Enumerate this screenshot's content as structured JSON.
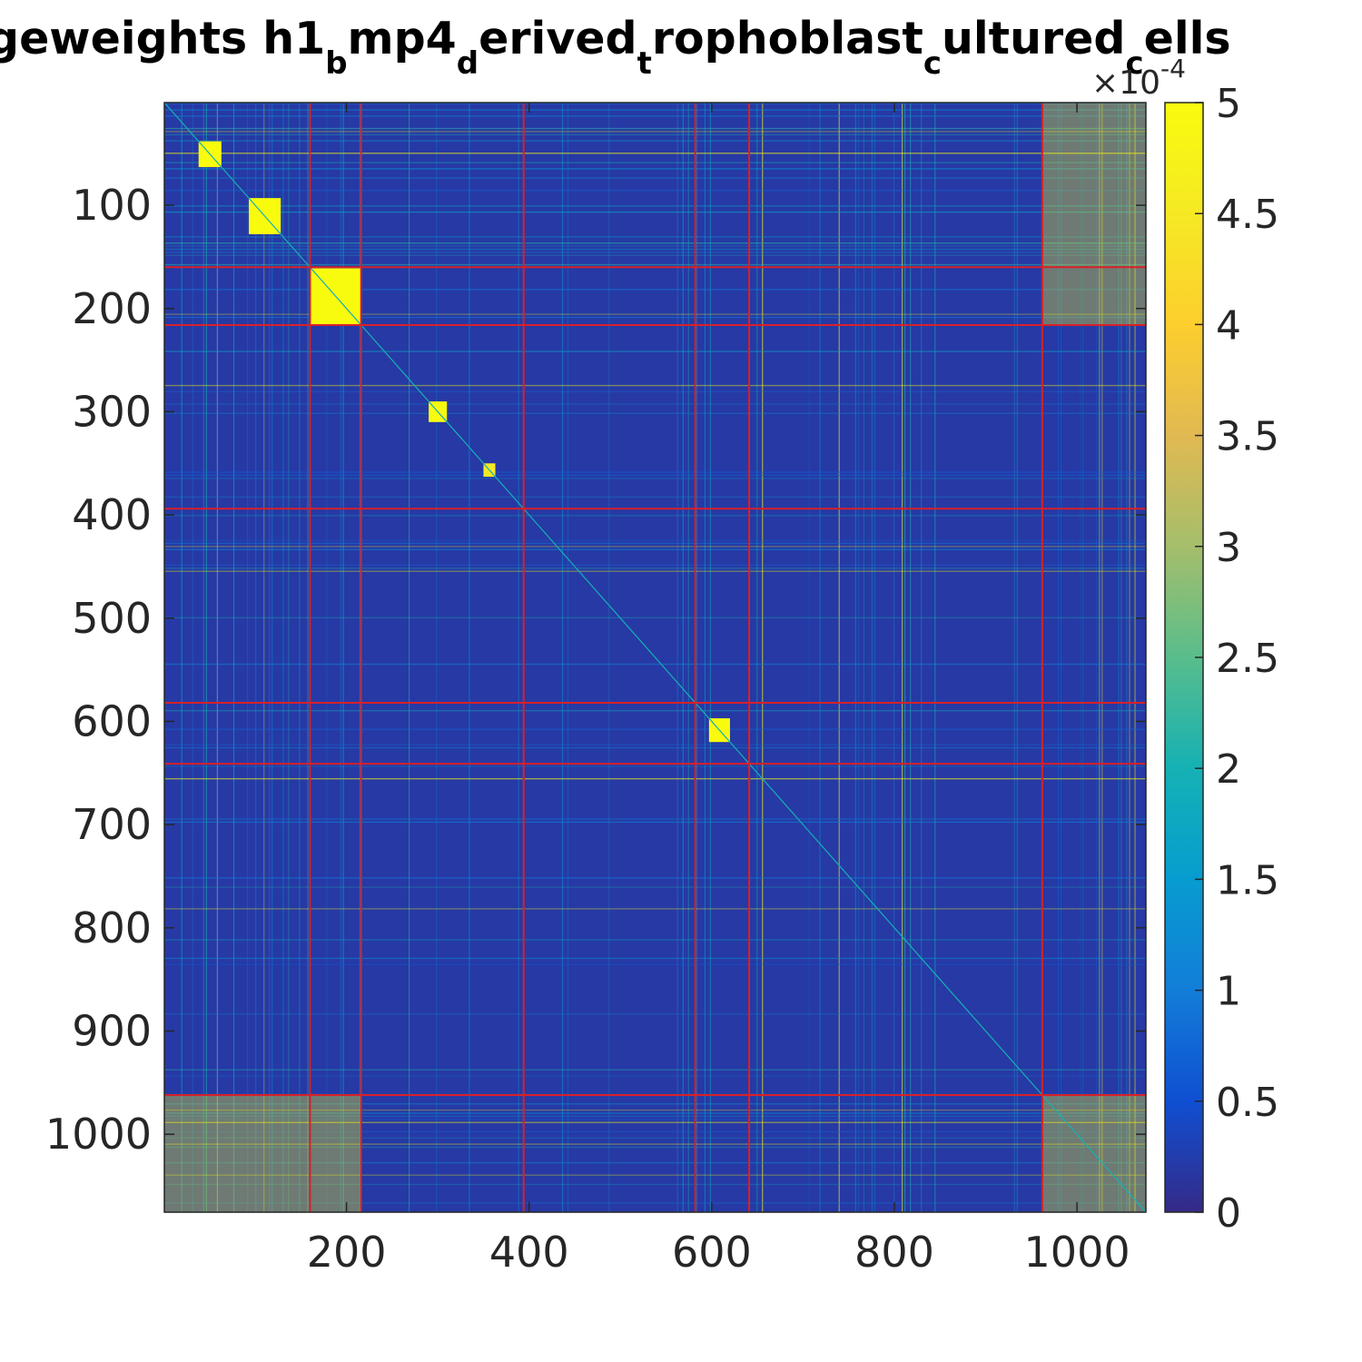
{
  "chart_data": {
    "type": "heatmap",
    "title_parts": [
      {
        "text": "geweights h1",
        "sub": "b"
      },
      {
        "text": "mp4",
        "sub": "d"
      },
      {
        "text": "erived",
        "sub": "t"
      },
      {
        "text": "rophoblast",
        "sub": "c"
      },
      {
        "text": "ultured",
        "sub": "c"
      },
      {
        "text": "ells",
        "sub": ""
      }
    ],
    "matrix_size": 1075,
    "xlim": [
      1,
      1075
    ],
    "ylim": [
      1,
      1075
    ],
    "x_ticks": [
      200,
      400,
      600,
      800,
      1000
    ],
    "y_ticks": [
      100,
      200,
      300,
      400,
      500,
      600,
      700,
      800,
      900,
      1000
    ],
    "x_tick_labels": [
      "200",
      "400",
      "600",
      "800",
      "1000"
    ],
    "y_tick_labels": [
      "100",
      "200",
      "300",
      "400",
      "500",
      "600",
      "700",
      "800",
      "900",
      "1000"
    ],
    "colorbar": {
      "min": 0,
      "max": 5,
      "multiplier_label": "×10",
      "exponent_label": "-4",
      "ticks": [
        0,
        0.5,
        1,
        1.5,
        2,
        2.5,
        3,
        3.5,
        4,
        4.5,
        5
      ],
      "tick_labels": [
        "0",
        "0.5",
        "1",
        "1.5",
        "2",
        "2.5",
        "3",
        "3.5",
        "4",
        "4.5",
        "5"
      ],
      "colormap": "parula"
    },
    "cluster_boundaries": [
      160,
      216,
      394,
      582,
      641,
      962
    ],
    "boundary_color": "#d8202a",
    "bright_blocks": [
      {
        "from": 38,
        "to": 63,
        "value": 5
      },
      {
        "from": 93,
        "to": 128,
        "value": 5
      },
      {
        "from": 161,
        "to": 216,
        "value": 5
      },
      {
        "from": 290,
        "to": 310,
        "value": 5
      },
      {
        "from": 350,
        "to": 363,
        "value": 4.5
      },
      {
        "from": 597,
        "to": 620,
        "value": 5
      }
    ],
    "background_level": 0.2,
    "grid": false
  }
}
